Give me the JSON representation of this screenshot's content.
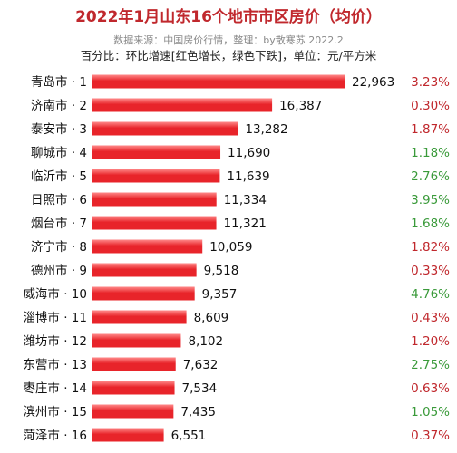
{
  "chart_data": {
    "type": "bar",
    "orientation": "horizontal",
    "title": "2022年1月山东16个地市市区房价（均价）",
    "subtitle": "数据来源：中国房价行情，整理：by散寒苏 2022.2",
    "note": "百分比：环比增速[红色增长，绿色下跌]，单位：元/平方米",
    "categories": [
      "青岛市 · 1",
      "济南市 · 2",
      "泰安市 · 3",
      "聊城市 · 4",
      "临沂市 · 5",
      "日照市 · 6",
      "烟台市 · 7",
      "济宁市 · 8",
      "德州市 · 9",
      "威海市 · 10",
      "淄博市 · 11",
      "潍坊市 · 12",
      "东营市 · 13",
      "枣庄市 · 14",
      "滨州市 · 15",
      "菏泽市 · 16"
    ],
    "values": [
      22963,
      16387,
      13282,
      11690,
      11639,
      11334,
      11321,
      10059,
      9518,
      9357,
      8609,
      8102,
      7632,
      7534,
      7435,
      6551
    ],
    "value_labels": [
      "22,963",
      "16,387",
      "13,282",
      "11,690",
      "11,639",
      "11,334",
      "11,321",
      "10,059",
      "9,518",
      "9,357",
      "8,609",
      "8,102",
      "7,632",
      "7,534",
      "7,435",
      "6,551"
    ],
    "percent_labels": [
      "3.23%",
      "0.30%",
      "1.87%",
      "1.18%",
      "2.76%",
      "3.95%",
      "1.68%",
      "1.82%",
      "0.33%",
      "4.76%",
      "0.43%",
      "1.20%",
      "2.75%",
      "0.63%",
      "1.05%",
      "0.37%"
    ],
    "percent_direction": [
      "up",
      "up",
      "up",
      "down",
      "down",
      "down",
      "down",
      "up",
      "up",
      "down",
      "up",
      "up",
      "down",
      "up",
      "down",
      "up"
    ],
    "colors": {
      "bar": "#e8242a",
      "bar_highlight": "#ff8a8a",
      "up": "#c0282d",
      "down": "#3a9a3a",
      "title": "#c0282d"
    },
    "grid": false,
    "legend": "none"
  }
}
